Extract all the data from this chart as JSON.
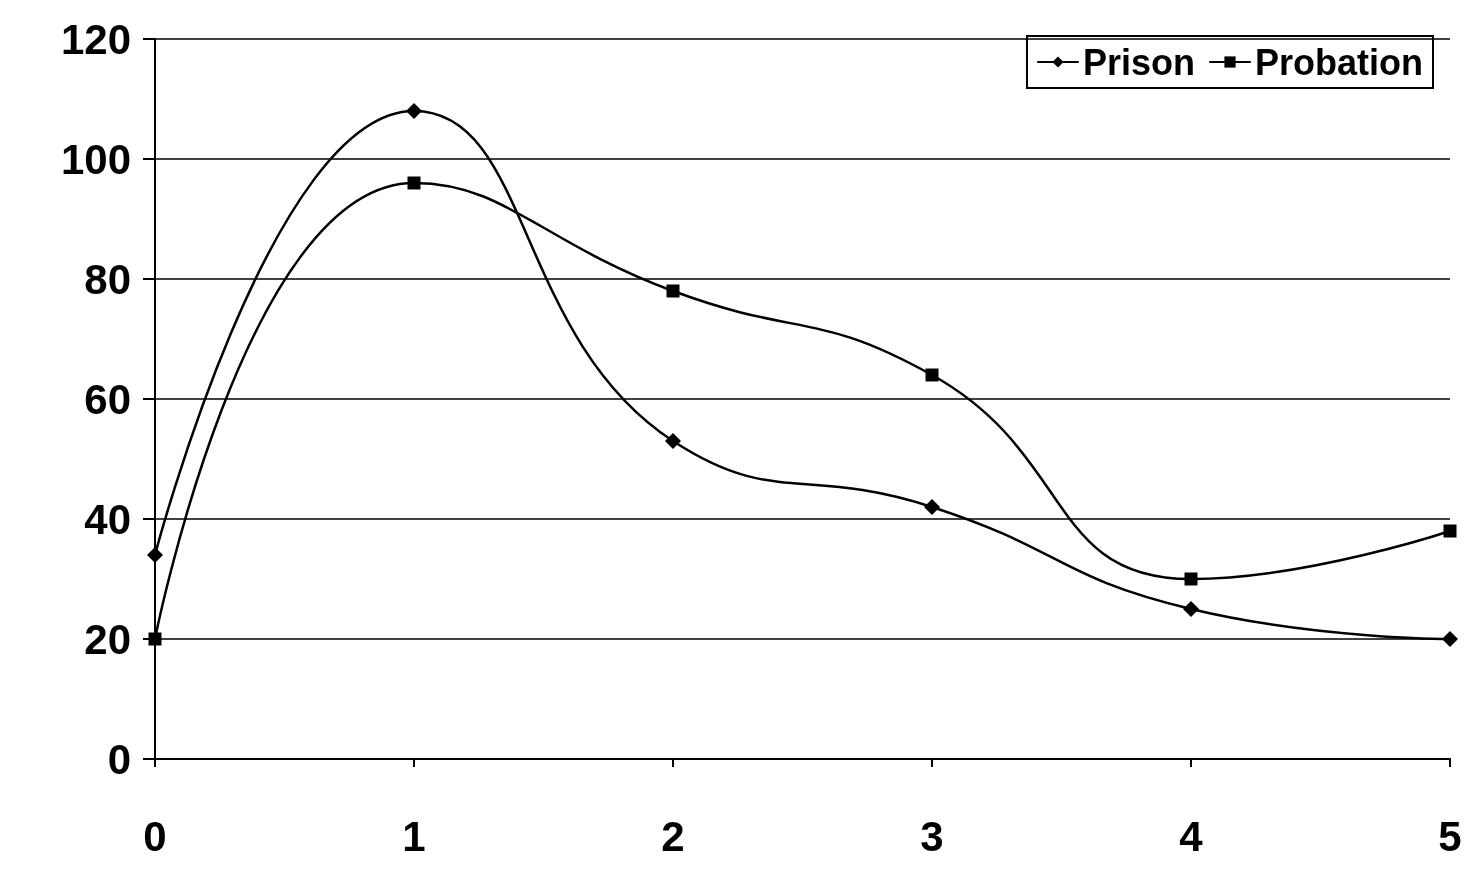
{
  "chart_data": {
    "type": "line",
    "x": [
      0,
      1,
      2,
      3,
      4,
      5
    ],
    "series": [
      {
        "name": "Prison",
        "color": "#000000",
        "marker": "diamond",
        "values": [
          34,
          108,
          53,
          42,
          25,
          20
        ]
      },
      {
        "name": "Probation",
        "color": "#000000",
        "marker": "square",
        "values": [
          20,
          96,
          78,
          64,
          30,
          38
        ]
      }
    ],
    "xlim": [
      0,
      5
    ],
    "xticks": [
      0,
      1,
      2,
      3,
      4,
      5
    ],
    "ylim": [
      0,
      120
    ],
    "yticks": [
      0,
      20,
      40,
      60,
      80,
      100,
      120
    ],
    "grid": "y",
    "legend": "top right",
    "line_style": "solid"
  }
}
